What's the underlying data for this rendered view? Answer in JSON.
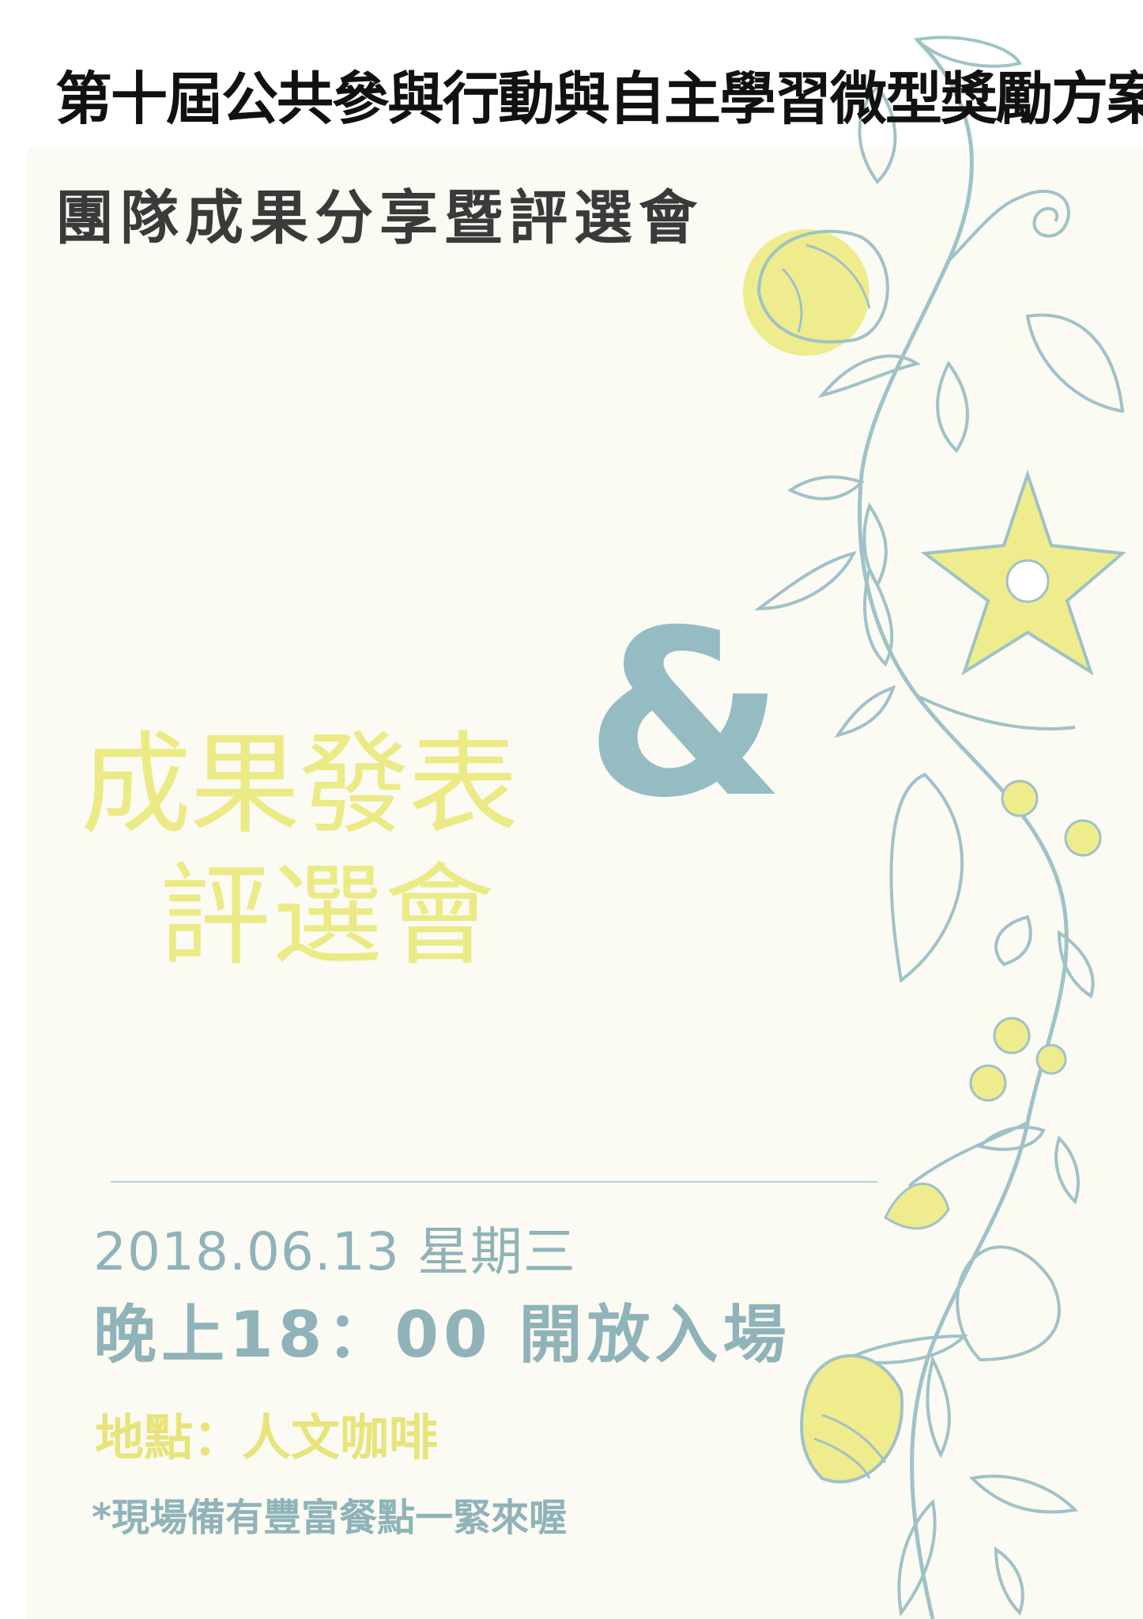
{
  "header": {
    "title_line1": "第十屆公共參與行動與自主學習微型獎勵方案",
    "title_line2": "團隊成果分享暨評選會"
  },
  "main": {
    "headline_line1": "成果發表",
    "headline_line2": "評選會",
    "ampersand": "&"
  },
  "details": {
    "date": "2018.06.13 星期三",
    "time": "晚上18：00 開放入場",
    "venue": "地點：人文咖啡",
    "note": "*現場備有豐富餐點一緊來喔"
  },
  "colors": {
    "background": "#fbfaf3",
    "yellow": "#ecea85",
    "teal": "#95bcc2",
    "title_dark": "#111111"
  },
  "decoration": {
    "vine_icon": "floral-vine-illustration"
  }
}
